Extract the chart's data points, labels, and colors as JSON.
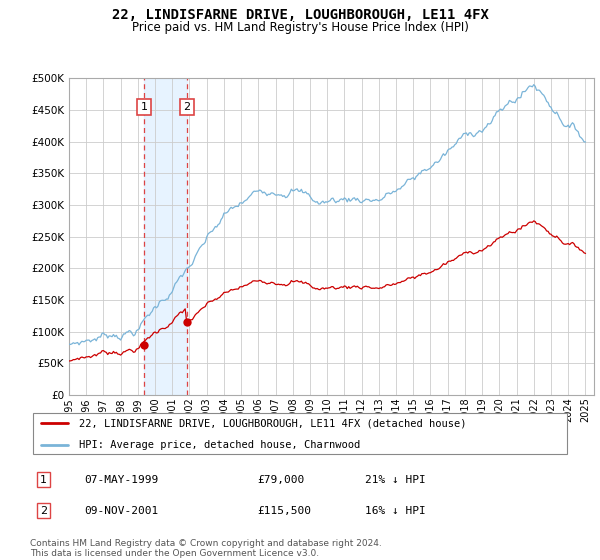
{
  "title": "22, LINDISFARNE DRIVE, LOUGHBOROUGH, LE11 4FX",
  "subtitle": "Price paid vs. HM Land Registry's House Price Index (HPI)",
  "legend_line1": "22, LINDISFARNE DRIVE, LOUGHBOROUGH, LE11 4FX (detached house)",
  "legend_line2": "HPI: Average price, detached house, Charnwood",
  "transaction1_date": "07-MAY-1999",
  "transaction1_price": "£79,000",
  "transaction1_pct": "21% ↓ HPI",
  "transaction2_date": "09-NOV-2001",
  "transaction2_price": "£115,500",
  "transaction2_pct": "16% ↓ HPI",
  "footer": "Contains HM Land Registry data © Crown copyright and database right 2024.\nThis data is licensed under the Open Government Licence v3.0.",
  "hpi_color": "#7ab4d8",
  "price_color": "#cc0000",
  "marker_color": "#cc0000",
  "vline_color": "#dd4444",
  "shade_color": "#ddeeff",
  "transaction1_x": 1999.35,
  "transaction2_x": 2001.85,
  "transaction1_y": 79000,
  "transaction2_y": 115500,
  "ylim": [
    0,
    500000
  ],
  "xlim": [
    1995,
    2025.5
  ],
  "yticks": [
    0,
    50000,
    100000,
    150000,
    200000,
    250000,
    300000,
    350000,
    400000,
    450000,
    500000
  ],
  "xticks": [
    1995,
    1996,
    1997,
    1998,
    1999,
    2000,
    2001,
    2002,
    2003,
    2004,
    2005,
    2006,
    2007,
    2008,
    2009,
    2010,
    2011,
    2012,
    2013,
    2014,
    2015,
    2016,
    2017,
    2018,
    2019,
    2020,
    2021,
    2022,
    2023,
    2024,
    2025
  ]
}
